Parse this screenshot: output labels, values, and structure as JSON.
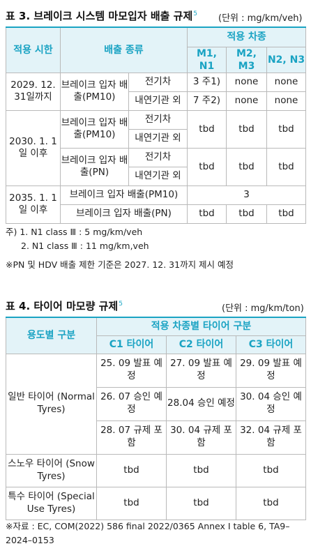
{
  "table3": {
    "caption": "표 3. 브레이크 시스템 마모입자 배출 규제",
    "caption_sup": "5",
    "unit": "(단위 : mg/km/veh)",
    "head": {
      "col1": "적용 시한",
      "col2": "배출 종류",
      "group": "적용 차종",
      "m1": "M1, N1",
      "m2": "M2, M3",
      "n2": "N2, N3"
    },
    "r2029": {
      "period": "2029. 12. 31일까지",
      "type": "브레이크 입자 배출(PM10)",
      "sub1": "전기차",
      "sub1_vals": [
        "3 주1)",
        "none",
        "none"
      ],
      "sub2": "내연기관 외",
      "sub2_vals": [
        "7 주2)",
        "none",
        "none"
      ]
    },
    "r2030": {
      "period": "2030. 1. 1일 이후",
      "typeA": "브레이크 입자 배출(PM10)",
      "typeA_sub1": "전기차",
      "typeA_sub2": "내연기관 외",
      "typeA_vals": [
        "tbd",
        "tbd",
        "tbd"
      ],
      "typeB": "브레이크 입자 배출(PN)",
      "typeB_sub1": "전기차",
      "typeB_sub2": "내연기관 외",
      "typeB_vals": [
        "tbd",
        "tbd",
        "tbd"
      ]
    },
    "r2035": {
      "period": "2035. 1. 1일 이후",
      "typeA": "브레이크 입자 배출(PM10)",
      "typeA_val": "3",
      "typeB": "브레이크 입자 배출(PN)",
      "typeB_vals": [
        "tbd",
        "tbd",
        "tbd"
      ]
    },
    "notes": [
      "주) 1. N1 class Ⅲ : 5 mg/km/veh",
      "2. N1 class Ⅲ : 11 mg/km,veh",
      "※PN 및 HDV 배출 제한 기준은 2027. 12. 31까지 제시 예정"
    ]
  },
  "table4": {
    "caption": "표 4. 타이어 마모량 규제",
    "caption_sup": "5",
    "unit": "(단위 : mg/km/ton)",
    "head": {
      "col1": "용도별 구분",
      "group": "적용 차종별 타이어 구분",
      "c1": "C1 타이어",
      "c2": "C2 타이어",
      "c3": "C3 타이어"
    },
    "normal": {
      "label": "일반 타이어 (Normal Tyres)",
      "row1": [
        "25. 09 발표 예정",
        "27. 09 발표 예정",
        "29. 09 발표 예정"
      ],
      "row2": [
        "26. 07 승인 예정",
        "28.04 승인 예정",
        "30. 04 승인 예정"
      ],
      "row3": [
        "28. 07 규제 포함",
        "30. 04 규제 포함",
        "32. 04 규제 포함"
      ]
    },
    "snow": {
      "label": "스노우 타이어 (Snow Tyres)",
      "vals": [
        "tbd",
        "tbd",
        "tbd"
      ]
    },
    "special": {
      "label": "특수 타이어 (Special Use Tyres)",
      "vals": [
        "tbd",
        "tbd",
        "tbd"
      ]
    },
    "source": "※자료 : EC, COM(2022) 586 final 2022/0365 Annex I table 6, TA9–2024–0153"
  }
}
